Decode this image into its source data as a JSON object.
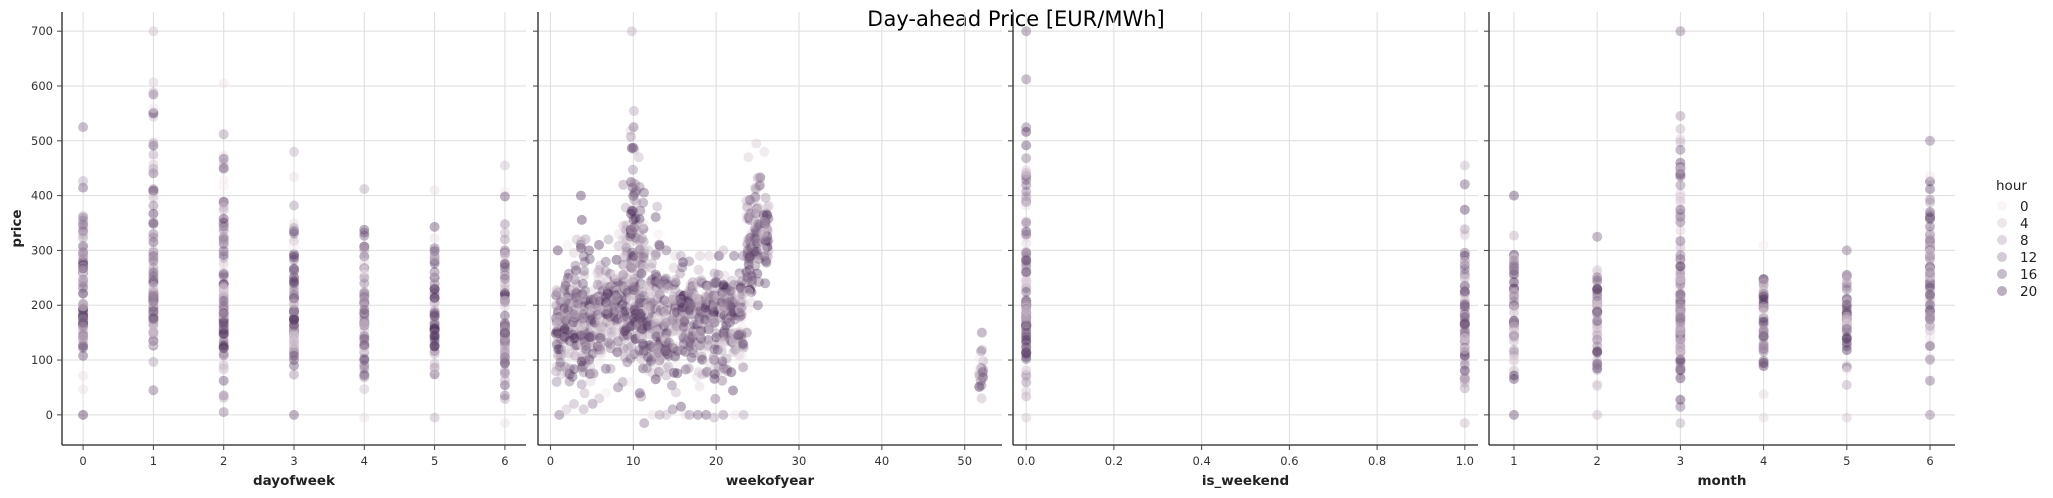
{
  "title": "Day-ahead Price [EUR/MWh]",
  "colors": {
    "hour_low": "#f2e7ec",
    "hour_high": "#3a1a4a",
    "grid": "#dddddd",
    "spine": "#222222"
  },
  "legend": {
    "title": "hour",
    "placement": "right",
    "entries": [
      "0",
      "4",
      "8",
      "12",
      "16",
      "20"
    ]
  },
  "chart_data": [
    {
      "type": "scatter",
      "xlabel": "dayofweek",
      "ylabel": "price",
      "xlim": [
        -0.3,
        6.3
      ],
      "ylim": [
        -55,
        735
      ],
      "xticks": [
        "0",
        "1",
        "2",
        "3",
        "4",
        "5",
        "6"
      ],
      "yticks": [
        "0",
        "100",
        "200",
        "300",
        "400",
        "500",
        "600",
        "700"
      ],
      "grid": true,
      "columns": [
        {
          "x": 0,
          "min": 0,
          "max": 525,
          "center": 200
        },
        {
          "x": 1,
          "min": 45,
          "max": 700,
          "center": 230
        },
        {
          "x": 2,
          "min": 5,
          "max": 605,
          "center": 200
        },
        {
          "x": 3,
          "min": 0,
          "max": 480,
          "center": 190
        },
        {
          "x": 4,
          "min": -5,
          "max": 412,
          "center": 180
        },
        {
          "x": 5,
          "min": -5,
          "max": 410,
          "center": 170
        },
        {
          "x": 6,
          "min": -15,
          "max": 455,
          "center": 165
        }
      ]
    },
    {
      "type": "scatter",
      "xlabel": "weekofyear",
      "ylabel": "",
      "xlim": [
        -1.5,
        54.5
      ],
      "ylim": [
        -55,
        735
      ],
      "xticks": [
        "0",
        "10",
        "20",
        "30",
        "40",
        "50"
      ],
      "yticks": [
        "0",
        "100",
        "200",
        "300",
        "400",
        "500",
        "600",
        "700"
      ],
      "grid": true,
      "columns": [
        {
          "x": 1,
          "min": 0,
          "max": 300,
          "center": 160
        },
        {
          "x": 2,
          "min": 10,
          "max": 310,
          "center": 170
        },
        {
          "x": 3,
          "min": 20,
          "max": 320,
          "center": 180
        },
        {
          "x": 4,
          "min": 10,
          "max": 400,
          "center": 170
        },
        {
          "x": 5,
          "min": 20,
          "max": 300,
          "center": 170
        },
        {
          "x": 6,
          "min": 30,
          "max": 310,
          "center": 180
        },
        {
          "x": 7,
          "min": 40,
          "max": 320,
          "center": 190
        },
        {
          "x": 8,
          "min": 50,
          "max": 330,
          "center": 200
        },
        {
          "x": 9,
          "min": 60,
          "max": 420,
          "center": 220
        },
        {
          "x": 10,
          "min": 60,
          "max": 700,
          "center": 250
        },
        {
          "x": 11,
          "min": -15,
          "max": 470,
          "center": 210
        },
        {
          "x": 12,
          "min": 0,
          "max": 300,
          "center": 190
        },
        {
          "x": 13,
          "min": 0,
          "max": 380,
          "center": 190
        },
        {
          "x": 14,
          "min": 0,
          "max": 300,
          "center": 180
        },
        {
          "x": 15,
          "min": 10,
          "max": 290,
          "center": 180
        },
        {
          "x": 16,
          "min": 0,
          "max": 290,
          "center": 185
        },
        {
          "x": 17,
          "min": 0,
          "max": 280,
          "center": 185
        },
        {
          "x": 18,
          "min": 0,
          "max": 290,
          "center": 190
        },
        {
          "x": 19,
          "min": 0,
          "max": 290,
          "center": 190
        },
        {
          "x": 20,
          "min": -5,
          "max": 290,
          "center": 195
        },
        {
          "x": 21,
          "min": 0,
          "max": 300,
          "center": 190
        },
        {
          "x": 22,
          "min": 0,
          "max": 290,
          "center": 180
        },
        {
          "x": 23,
          "min": 0,
          "max": 290,
          "center": 190
        },
        {
          "x": 24,
          "min": 150,
          "max": 470,
          "center": 290
        },
        {
          "x": 25,
          "min": 200,
          "max": 495,
          "center": 330
        },
        {
          "x": 26,
          "min": 240,
          "max": 480,
          "center": 330
        },
        {
          "x": 52,
          "min": 30,
          "max": 150,
          "center": 80
        }
      ]
    },
    {
      "type": "scatter",
      "xlabel": "is_weekend",
      "ylabel": "",
      "xlim": [
        -0.03,
        1.03
      ],
      "ylim": [
        -55,
        735
      ],
      "xticks": [
        "0.0",
        "0.2",
        "0.4",
        "0.6",
        "0.8",
        "1.0"
      ],
      "yticks": [
        "0",
        "100",
        "200",
        "300",
        "400",
        "500",
        "600",
        "700"
      ],
      "grid": true,
      "columns": [
        {
          "x": 0,
          "min": -5,
          "max": 700,
          "center": 200
        },
        {
          "x": 1,
          "min": -15,
          "max": 455,
          "center": 170
        }
      ]
    },
    {
      "type": "scatter",
      "xlabel": "month",
      "ylabel": "",
      "xlim": [
        0.7,
        6.3
      ],
      "ylim": [
        -55,
        735
      ],
      "xticks": [
        "1",
        "2",
        "3",
        "4",
        "5",
        "6"
      ],
      "yticks": [
        "0",
        "100",
        "200",
        "300",
        "400",
        "500",
        "600",
        "700"
      ],
      "grid": true,
      "columns": [
        {
          "x": 1,
          "min": 0,
          "max": 400,
          "center": 200
        },
        {
          "x": 2,
          "min": 0,
          "max": 325,
          "center": 180
        },
        {
          "x": 3,
          "min": -15,
          "max": 700,
          "center": 210
        },
        {
          "x": 4,
          "min": -5,
          "max": 310,
          "center": 180
        },
        {
          "x": 5,
          "min": -5,
          "max": 300,
          "center": 180
        },
        {
          "x": 6,
          "min": 0,
          "max": 500,
          "center": 240
        }
      ]
    }
  ]
}
